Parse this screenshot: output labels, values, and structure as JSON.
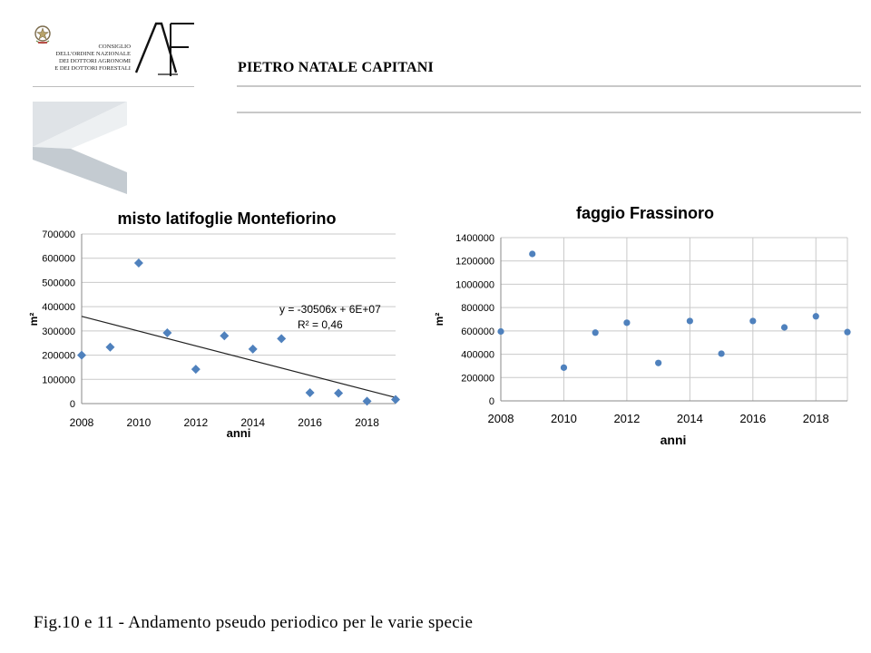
{
  "header": {
    "org_lines": [
      "CONSIGLIO",
      "DELL'ORDINE NAZIONALE",
      "DEI DOTTORI AGRONOMI",
      "E DEI DOTTORI FORESTALI"
    ],
    "logo_letters": "AF",
    "author": "PIETRO NATALE CAPITANI",
    "emblem_icon": "italian-republic-emblem-icon"
  },
  "caption": "Fig.10 e 11 - Andamento pseudo periodico per le varie specie",
  "chart_data": [
    {
      "type": "scatter",
      "title": "misto latifoglie Montefiorino",
      "xlabel": "anni",
      "ylabel": "m²",
      "xlim": [
        2008,
        2019
      ],
      "ylim": [
        0,
        700000
      ],
      "x_ticks": [
        "2008",
        "2010",
        "2012",
        "2014",
        "2016",
        "2018"
      ],
      "y_ticks": [
        "0",
        "100000",
        "200000",
        "300000",
        "400000",
        "500000",
        "600000",
        "700000"
      ],
      "grid": "horizontal",
      "marker": "diamond",
      "color": "#4f81bd",
      "points": [
        {
          "x": 2008,
          "y": 200000
        },
        {
          "x": 2009,
          "y": 233000
        },
        {
          "x": 2010,
          "y": 580000
        },
        {
          "x": 2011,
          "y": 292000
        },
        {
          "x": 2012,
          "y": 142000
        },
        {
          "x": 2013,
          "y": 280000
        },
        {
          "x": 2014,
          "y": 225000
        },
        {
          "x": 2015,
          "y": 268000
        },
        {
          "x": 2016,
          "y": 45000
        },
        {
          "x": 2017,
          "y": 43000
        },
        {
          "x": 2018,
          "y": 10000
        },
        {
          "x": 2019,
          "y": 17000
        }
      ],
      "trendline": {
        "type": "linear",
        "start": {
          "x": 2008,
          "y": 360000
        },
        "end": {
          "x": 2019,
          "y": 25000
        },
        "equation": "y = -30506x + 6E+07",
        "r_squared": "R² = 0,46"
      }
    },
    {
      "type": "scatter",
      "title": "faggio Frassinoro",
      "xlabel": "anni",
      "ylabel": "m²",
      "xlim": [
        2008,
        2019
      ],
      "ylim": [
        0,
        1400000
      ],
      "x_ticks": [
        "2008",
        "2010",
        "2012",
        "2014",
        "2016",
        "2018"
      ],
      "y_ticks": [
        "0",
        "200000",
        "400000",
        "600000",
        "800000",
        "1000000",
        "1200000",
        "1400000"
      ],
      "grid": "both",
      "marker": "circle",
      "color": "#4f81bd",
      "points": [
        {
          "x": 2008,
          "y": 595000
        },
        {
          "x": 2009,
          "y": 1260000
        },
        {
          "x": 2010,
          "y": 285000
        },
        {
          "x": 2011,
          "y": 585000
        },
        {
          "x": 2012,
          "y": 670000
        },
        {
          "x": 2013,
          "y": 325000
        },
        {
          "x": 2014,
          "y": 685000
        },
        {
          "x": 2015,
          "y": 405000
        },
        {
          "x": 2016,
          "y": 685000
        },
        {
          "x": 2017,
          "y": 630000
        },
        {
          "x": 2018,
          "y": 725000
        },
        {
          "x": 2019,
          "y": 590000
        }
      ]
    }
  ]
}
